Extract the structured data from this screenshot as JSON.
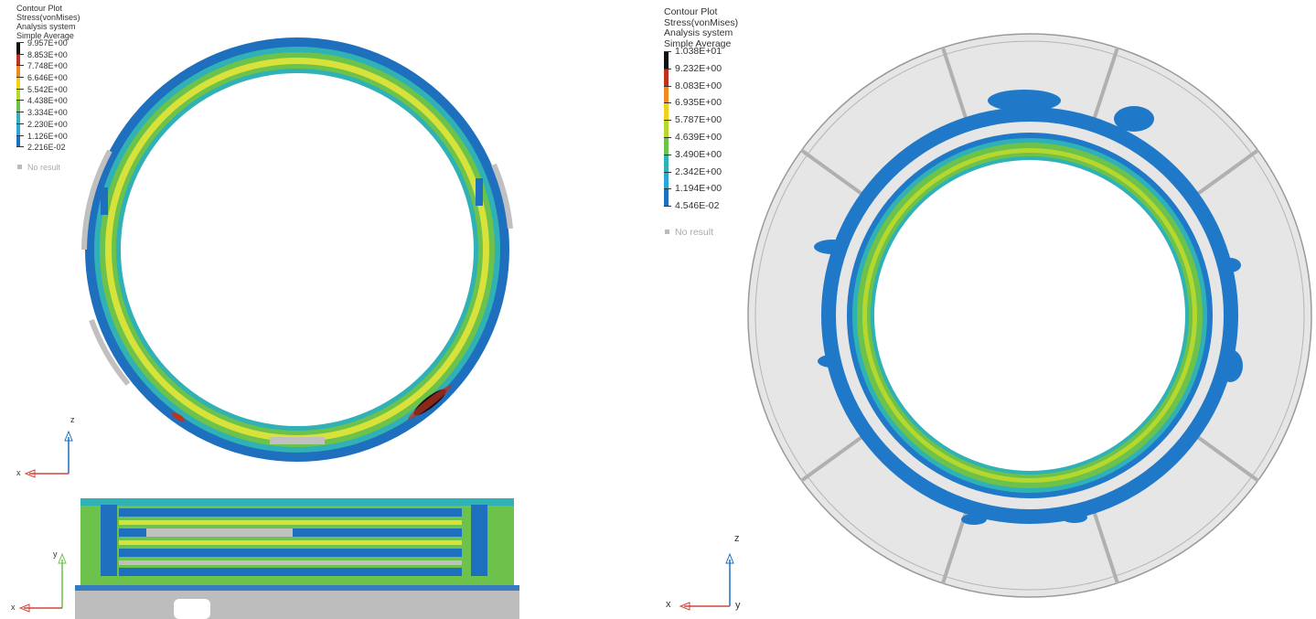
{
  "left_panel": {
    "legend": {
      "title": "Contour Plot",
      "quantity": "Stress(vonMises)",
      "system": "Analysis system",
      "averaging": "Simple Average",
      "levels": [
        {
          "label": "9.957E+00",
          "color": "#111111"
        },
        {
          "label": "8.853E+00",
          "color": "#c0321f"
        },
        {
          "label": "7.748E+00",
          "color": "#f08a1f"
        },
        {
          "label": "6.646E+00",
          "color": "#f0d21a"
        },
        {
          "label": "5.542E+00",
          "color": "#b6d82e"
        },
        {
          "label": "4.438E+00",
          "color": "#6cc24a"
        },
        {
          "label": "3.334E+00",
          "color": "#2fb1b5"
        },
        {
          "label": "2.230E+00",
          "color": "#29a8d8"
        },
        {
          "label": "1.126E+00",
          "color": "#1f6fbf"
        },
        {
          "label": "2.216E-02",
          "color": "#c0c0c0"
        }
      ],
      "no_result": "No result"
    },
    "axes_top": {
      "vertical": "z",
      "horizontal": "x"
    },
    "axes_bottom": {
      "vertical": "y",
      "horizontal": "x"
    }
  },
  "right_panel": {
    "legend": {
      "title": "Contour Plot",
      "quantity": "Stress(vonMises)",
      "system": "Analysis system",
      "averaging": "Simple Average",
      "levels": [
        {
          "label": "1.038E+01",
          "color": "#111111"
        },
        {
          "label": "9.232E+00",
          "color": "#c0321f"
        },
        {
          "label": "8.083E+00",
          "color": "#f08a1f"
        },
        {
          "label": "6.935E+00",
          "color": "#f0d21a"
        },
        {
          "label": "5.787E+00",
          "color": "#b6d82e"
        },
        {
          "label": "4.639E+00",
          "color": "#6cc24a"
        },
        {
          "label": "3.490E+00",
          "color": "#2fb1b5"
        },
        {
          "label": "2.342E+00",
          "color": "#29a8d8"
        },
        {
          "label": "1.194E+00",
          "color": "#1f6fbf"
        },
        {
          "label": "4.546E-02",
          "color": "#c0c0c0"
        }
      ],
      "no_result": "No result"
    },
    "axes": {
      "vertical": "z",
      "horizontal": "x",
      "out_of_plane": "y"
    }
  }
}
